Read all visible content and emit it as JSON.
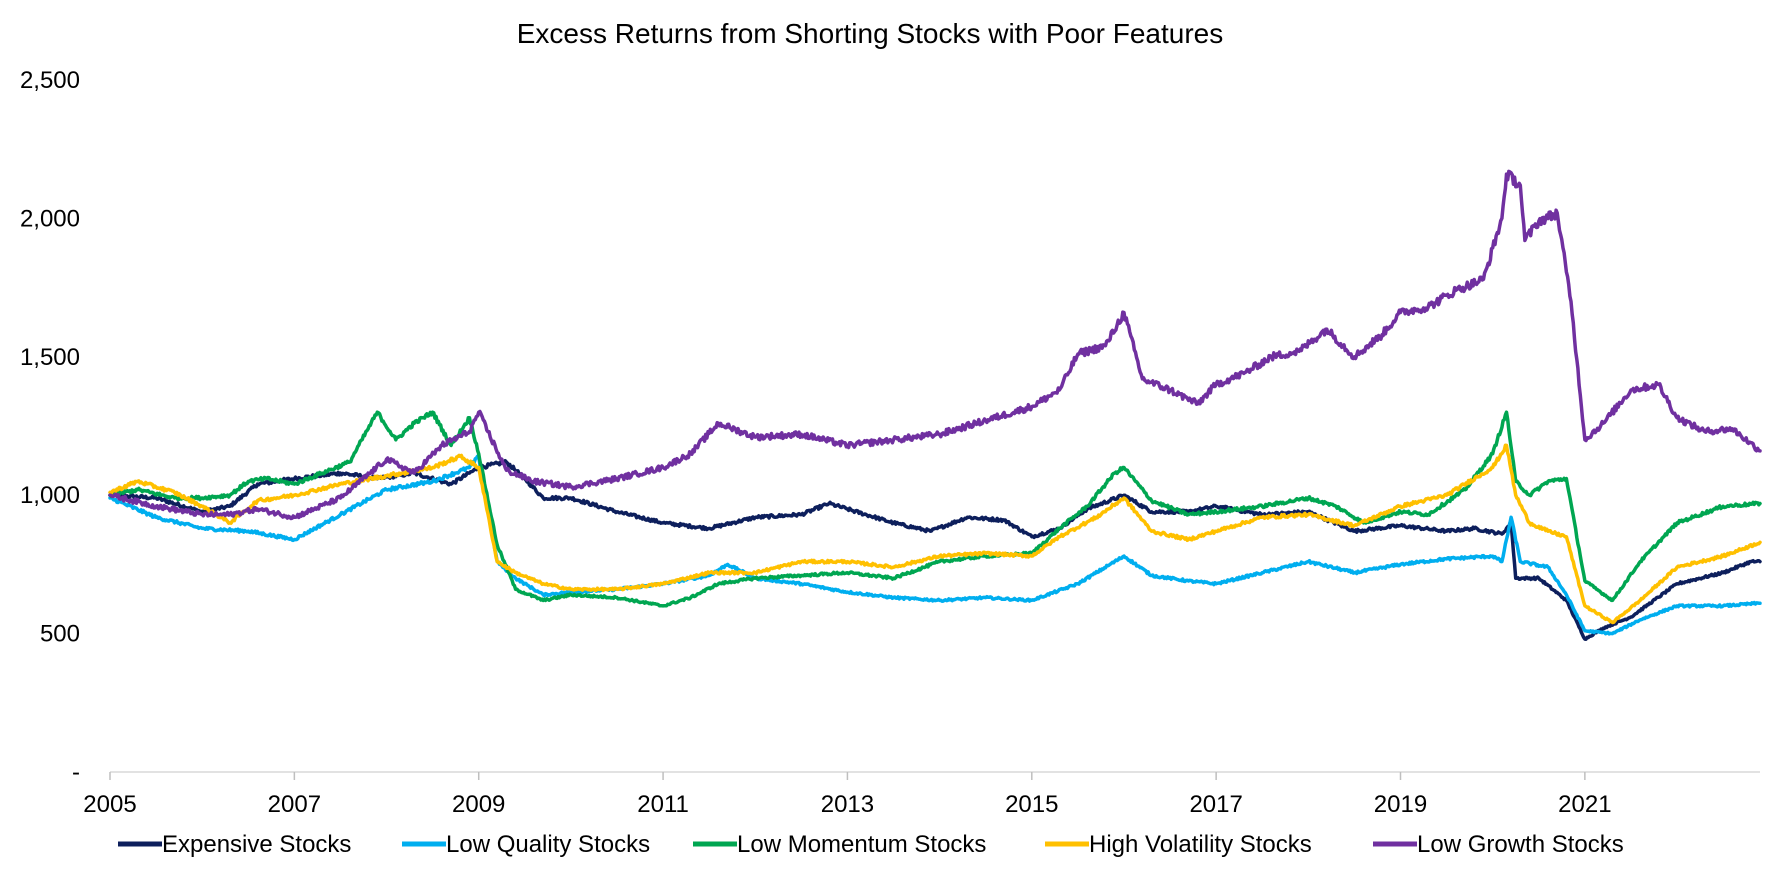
{
  "chart_data": {
    "type": "line",
    "title": "Excess Returns from Shorting Stocks with Poor Features",
    "xlabel": "",
    "ylabel": "",
    "xlim": [
      2005.0,
      2022.9
    ],
    "ylim": [
      0,
      2500
    ],
    "x_ticks": [
      2005,
      2007,
      2009,
      2011,
      2013,
      2015,
      2017,
      2019,
      2021
    ],
    "x_tick_labels": [
      "2005",
      "2007",
      "2009",
      "2011",
      "2013",
      "2015",
      "2017",
      "2019",
      "2021"
    ],
    "y_ticks": [
      0,
      500,
      1000,
      1500,
      2000,
      2500
    ],
    "y_tick_labels": [
      "-",
      "500",
      "1,000",
      "1,500",
      "2,000",
      "2,500"
    ],
    "grid": false,
    "legend_position": "bottom",
    "series": [
      {
        "name": "Expensive Stocks",
        "color": "#0d1f5c",
        "points": [
          [
            2005.0,
            1000
          ],
          [
            2005.5,
            990
          ],
          [
            2006.0,
            940
          ],
          [
            2006.3,
            960
          ],
          [
            2006.6,
            1040
          ],
          [
            2007.0,
            1060
          ],
          [
            2007.5,
            1080
          ],
          [
            2007.9,
            1060
          ],
          [
            2008.3,
            1080
          ],
          [
            2008.7,
            1040
          ],
          [
            2009.0,
            1100
          ],
          [
            2009.3,
            1120
          ],
          [
            2009.5,
            1060
          ],
          [
            2009.7,
            990
          ],
          [
            2010.0,
            990
          ],
          [
            2010.5,
            940
          ],
          [
            2011.0,
            900
          ],
          [
            2011.5,
            880
          ],
          [
            2012.0,
            920
          ],
          [
            2012.5,
            930
          ],
          [
            2012.8,
            970
          ],
          [
            2013.0,
            950
          ],
          [
            2013.5,
            900
          ],
          [
            2013.9,
            870
          ],
          [
            2014.3,
            920
          ],
          [
            2014.7,
            910
          ],
          [
            2015.0,
            850
          ],
          [
            2015.3,
            880
          ],
          [
            2015.6,
            950
          ],
          [
            2016.0,
            1000
          ],
          [
            2016.3,
            940
          ],
          [
            2016.7,
            940
          ],
          [
            2017.0,
            960
          ],
          [
            2017.5,
            930
          ],
          [
            2018.0,
            940
          ],
          [
            2018.5,
            870
          ],
          [
            2019.0,
            890
          ],
          [
            2019.5,
            870
          ],
          [
            2019.8,
            880
          ],
          [
            2020.1,
            860
          ],
          [
            2020.2,
            900
          ],
          [
            2020.25,
            700
          ],
          [
            2020.5,
            700
          ],
          [
            2020.8,
            620
          ],
          [
            2021.0,
            480
          ],
          [
            2021.2,
            520
          ],
          [
            2021.5,
            560
          ],
          [
            2022.0,
            680
          ],
          [
            2022.5,
            720
          ],
          [
            2022.8,
            760
          ],
          [
            2022.9,
            760
          ]
        ]
      },
      {
        "name": "Low Quality Stocks",
        "color": "#00aeef",
        "points": [
          [
            2005.0,
            990
          ],
          [
            2005.5,
            920
          ],
          [
            2006.0,
            880
          ],
          [
            2006.5,
            870
          ],
          [
            2007.0,
            840
          ],
          [
            2007.5,
            930
          ],
          [
            2008.0,
            1020
          ],
          [
            2008.5,
            1050
          ],
          [
            2008.9,
            1100
          ],
          [
            2009.0,
            1140
          ],
          [
            2009.2,
            760
          ],
          [
            2009.4,
            700
          ],
          [
            2009.7,
            640
          ],
          [
            2010.0,
            650
          ],
          [
            2010.5,
            660
          ],
          [
            2011.0,
            680
          ],
          [
            2011.5,
            710
          ],
          [
            2011.7,
            750
          ],
          [
            2012.0,
            700
          ],
          [
            2012.5,
            680
          ],
          [
            2013.0,
            650
          ],
          [
            2013.5,
            630
          ],
          [
            2014.0,
            620
          ],
          [
            2014.5,
            630
          ],
          [
            2015.0,
            620
          ],
          [
            2015.5,
            680
          ],
          [
            2016.0,
            780
          ],
          [
            2016.3,
            710
          ],
          [
            2016.7,
            690
          ],
          [
            2017.0,
            680
          ],
          [
            2017.5,
            720
          ],
          [
            2018.0,
            760
          ],
          [
            2018.5,
            720
          ],
          [
            2019.0,
            750
          ],
          [
            2019.5,
            770
          ],
          [
            2020.0,
            780
          ],
          [
            2020.1,
            760
          ],
          [
            2020.2,
            920
          ],
          [
            2020.3,
            760
          ],
          [
            2020.6,
            740
          ],
          [
            2020.8,
            640
          ],
          [
            2021.0,
            510
          ],
          [
            2021.3,
            500
          ],
          [
            2021.6,
            550
          ],
          [
            2022.0,
            600
          ],
          [
            2022.5,
            600
          ],
          [
            2022.9,
            610
          ]
        ]
      },
      {
        "name": "Low Momentum Stocks",
        "color": "#00a651",
        "points": [
          [
            2005.0,
            1000
          ],
          [
            2005.3,
            1020
          ],
          [
            2005.7,
            990
          ],
          [
            2006.0,
            990
          ],
          [
            2006.3,
            1000
          ],
          [
            2006.5,
            1050
          ],
          [
            2006.7,
            1060
          ],
          [
            2007.0,
            1040
          ],
          [
            2007.3,
            1080
          ],
          [
            2007.6,
            1120
          ],
          [
            2007.9,
            1300
          ],
          [
            2008.1,
            1200
          ],
          [
            2008.3,
            1260
          ],
          [
            2008.5,
            1300
          ],
          [
            2008.7,
            1180
          ],
          [
            2008.9,
            1280
          ],
          [
            2009.0,
            1150
          ],
          [
            2009.2,
            820
          ],
          [
            2009.4,
            660
          ],
          [
            2009.7,
            620
          ],
          [
            2010.0,
            640
          ],
          [
            2010.5,
            630
          ],
          [
            2011.0,
            600
          ],
          [
            2011.3,
            630
          ],
          [
            2011.6,
            680
          ],
          [
            2012.0,
            700
          ],
          [
            2012.5,
            710
          ],
          [
            2013.0,
            720
          ],
          [
            2013.5,
            700
          ],
          [
            2014.0,
            760
          ],
          [
            2014.5,
            780
          ],
          [
            2015.0,
            790
          ],
          [
            2015.3,
            880
          ],
          [
            2015.6,
            960
          ],
          [
            2015.9,
            1080
          ],
          [
            2016.0,
            1100
          ],
          [
            2016.3,
            980
          ],
          [
            2016.7,
            930
          ],
          [
            2017.0,
            940
          ],
          [
            2017.5,
            960
          ],
          [
            2018.0,
            990
          ],
          [
            2018.3,
            960
          ],
          [
            2018.6,
            900
          ],
          [
            2019.0,
            940
          ],
          [
            2019.3,
            930
          ],
          [
            2019.7,
            1020
          ],
          [
            2020.0,
            1150
          ],
          [
            2020.15,
            1300
          ],
          [
            2020.25,
            1050
          ],
          [
            2020.4,
            1000
          ],
          [
            2020.6,
            1050
          ],
          [
            2020.8,
            1060
          ],
          [
            2021.0,
            690
          ],
          [
            2021.3,
            620
          ],
          [
            2021.6,
            760
          ],
          [
            2022.0,
            900
          ],
          [
            2022.5,
            960
          ],
          [
            2022.9,
            970
          ]
        ]
      },
      {
        "name": "High Volatility Stocks",
        "color": "#ffc000",
        "points": [
          [
            2005.0,
            1010
          ],
          [
            2005.3,
            1050
          ],
          [
            2005.7,
            1010
          ],
          [
            2006.0,
            960
          ],
          [
            2006.3,
            900
          ],
          [
            2006.6,
            980
          ],
          [
            2007.0,
            1000
          ],
          [
            2007.5,
            1040
          ],
          [
            2008.0,
            1070
          ],
          [
            2008.5,
            1100
          ],
          [
            2008.8,
            1140
          ],
          [
            2009.0,
            1100
          ],
          [
            2009.2,
            760
          ],
          [
            2009.4,
            720
          ],
          [
            2009.7,
            680
          ],
          [
            2010.0,
            660
          ],
          [
            2010.5,
            660
          ],
          [
            2011.0,
            680
          ],
          [
            2011.5,
            720
          ],
          [
            2012.0,
            720
          ],
          [
            2012.5,
            760
          ],
          [
            2013.0,
            760
          ],
          [
            2013.5,
            740
          ],
          [
            2014.0,
            780
          ],
          [
            2014.5,
            790
          ],
          [
            2015.0,
            780
          ],
          [
            2015.3,
            850
          ],
          [
            2015.7,
            920
          ],
          [
            2016.0,
            990
          ],
          [
            2016.3,
            870
          ],
          [
            2016.7,
            840
          ],
          [
            2017.0,
            870
          ],
          [
            2017.5,
            920
          ],
          [
            2018.0,
            930
          ],
          [
            2018.5,
            890
          ],
          [
            2019.0,
            960
          ],
          [
            2019.5,
            1000
          ],
          [
            2020.0,
            1100
          ],
          [
            2020.15,
            1180
          ],
          [
            2020.25,
            1000
          ],
          [
            2020.4,
            900
          ],
          [
            2020.6,
            870
          ],
          [
            2020.8,
            850
          ],
          [
            2021.0,
            600
          ],
          [
            2021.3,
            540
          ],
          [
            2021.6,
            620
          ],
          [
            2022.0,
            740
          ],
          [
            2022.5,
            780
          ],
          [
            2022.9,
            830
          ]
        ]
      },
      {
        "name": "Low Growth Stocks",
        "color": "#7030a0",
        "points": [
          [
            2005.0,
            1000
          ],
          [
            2005.5,
            960
          ],
          [
            2006.0,
            930
          ],
          [
            2006.3,
            930
          ],
          [
            2006.6,
            950
          ],
          [
            2007.0,
            920
          ],
          [
            2007.5,
            990
          ],
          [
            2008.0,
            1130
          ],
          [
            2008.3,
            1080
          ],
          [
            2008.6,
            1180
          ],
          [
            2008.9,
            1230
          ],
          [
            2009.0,
            1300
          ],
          [
            2009.3,
            1090
          ],
          [
            2009.6,
            1050
          ],
          [
            2010.0,
            1030
          ],
          [
            2010.5,
            1060
          ],
          [
            2011.0,
            1100
          ],
          [
            2011.3,
            1150
          ],
          [
            2011.6,
            1260
          ],
          [
            2012.0,
            1210
          ],
          [
            2012.5,
            1220
          ],
          [
            2013.0,
            1180
          ],
          [
            2013.5,
            1200
          ],
          [
            2014.0,
            1220
          ],
          [
            2014.5,
            1270
          ],
          [
            2015.0,
            1320
          ],
          [
            2015.3,
            1380
          ],
          [
            2015.5,
            1510
          ],
          [
            2015.8,
            1540
          ],
          [
            2016.0,
            1660
          ],
          [
            2016.2,
            1420
          ],
          [
            2016.5,
            1380
          ],
          [
            2016.8,
            1330
          ],
          [
            2017.0,
            1400
          ],
          [
            2017.3,
            1440
          ],
          [
            2017.6,
            1500
          ],
          [
            2017.9,
            1520
          ],
          [
            2018.2,
            1600
          ],
          [
            2018.5,
            1500
          ],
          [
            2018.8,
            1580
          ],
          [
            2019.0,
            1660
          ],
          [
            2019.3,
            1680
          ],
          [
            2019.6,
            1740
          ],
          [
            2019.9,
            1780
          ],
          [
            2020.1,
            2000
          ],
          [
            2020.15,
            2160
          ],
          [
            2020.3,
            2120
          ],
          [
            2020.35,
            1920
          ],
          [
            2020.5,
            1990
          ],
          [
            2020.7,
            2020
          ],
          [
            2020.85,
            1700
          ],
          [
            2021.0,
            1200
          ],
          [
            2021.2,
            1260
          ],
          [
            2021.5,
            1380
          ],
          [
            2021.8,
            1400
          ],
          [
            2022.0,
            1280
          ],
          [
            2022.3,
            1230
          ],
          [
            2022.6,
            1240
          ],
          [
            2022.9,
            1160
          ]
        ]
      }
    ]
  }
}
